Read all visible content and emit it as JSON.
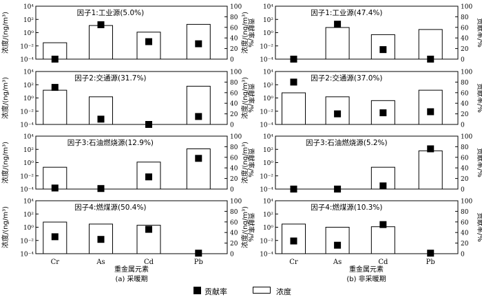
{
  "legend": {
    "contribution_label": "贡献率",
    "concentration_label": "浓度"
  },
  "chart_data": [
    {
      "type": "bar",
      "subplot": "(a) 采暖期",
      "xlabel": "重金属元素",
      "ylabel_left": "浓度/(ng/m³)",
      "ylabel_right": "贡献率/%",
      "categories": [
        "Cr",
        "As",
        "Cd",
        "Pb"
      ],
      "left_axis": {
        "scale": "log",
        "ylim": [
          0.0001,
          10000
        ],
        "ticks": [
          "10^-4",
          "10^-2",
          "10^0",
          "10^2",
          "10^4"
        ]
      },
      "right_axis": {
        "scale": "linear",
        "ylim": [
          0,
          100
        ],
        "ticks": [
          "0",
          "20",
          "40",
          "60",
          "80",
          "100"
        ]
      },
      "panels": [
        {
          "title": "因子1:工业源(5.0%)",
          "concentration": [
            0.03,
            12,
            1.2,
            18
          ],
          "contribution": [
            0,
            65,
            33,
            29
          ]
        },
        {
          "title": "因子2:交通源(31.7%)",
          "concentration": [
            15,
            1.5,
            0.0001,
            60
          ],
          "contribution": [
            70,
            10,
            0,
            15
          ]
        },
        {
          "title": "因子3:石油燃烧源(12.9%)",
          "concentration": [
            0.2,
            0.0001,
            1.2,
            120
          ],
          "contribution": [
            2,
            1,
            23,
            58
          ]
        },
        {
          "title": "因子4:燃煤源(50.4%)",
          "concentration": [
            6,
            3,
            2,
            0.0001
          ],
          "contribution": [
            32,
            27,
            46,
            1
          ]
        }
      ]
    },
    {
      "type": "bar",
      "subplot": "(b) 非采暖期",
      "xlabel": "重金属元素",
      "ylabel_left": "浓度/(ng/m³)",
      "ylabel_right": "贡献率/%",
      "categories": [
        "Cr",
        "As",
        "Cd",
        "Pb"
      ],
      "left_axis": {
        "scale": "log",
        "ylim": [
          0.0001,
          10000
        ],
        "ticks": [
          "10^-4",
          "10^-2",
          "10^0",
          "10^2",
          "10^4"
        ]
      },
      "right_axis": {
        "scale": "linear",
        "ylim": [
          0,
          100
        ],
        "ticks": [
          "0",
          "20",
          "40",
          "60",
          "80",
          "100"
        ]
      },
      "panels": [
        {
          "title": "因子1:工业源(47.4%)",
          "concentration": [
            0.0001,
            6,
            0.5,
            3
          ],
          "contribution": [
            0,
            66,
            18,
            0
          ]
        },
        {
          "title": "因子2:交通源(37.0%)",
          "concentration": [
            6,
            1.5,
            0.4,
            15
          ],
          "contribution": [
            80,
            20,
            22,
            24
          ]
        },
        {
          "title": "因子3:石油燃烧源(5.2%)",
          "concentration": [
            0.0001,
            0.0001,
            0.2,
            60
          ],
          "contribution": [
            0,
            0,
            6,
            76
          ]
        },
        {
          "title": "因子4:燃煤源(10.3%)",
          "concentration": [
            3,
            1,
            1.2,
            0.0001
          ],
          "contribution": [
            24,
            16,
            55,
            1
          ]
        }
      ]
    }
  ]
}
